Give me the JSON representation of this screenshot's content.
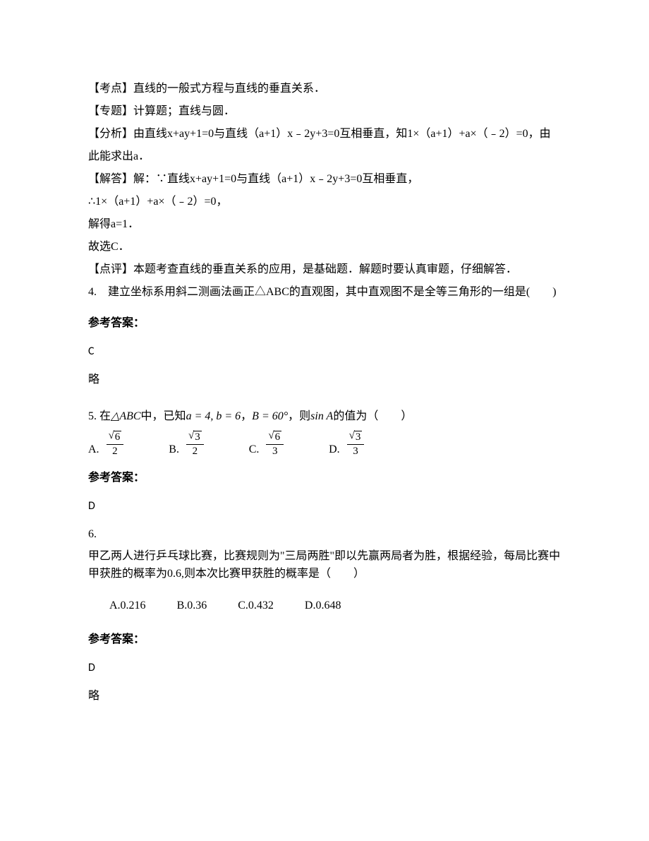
{
  "solution3": {
    "kaodian": "【考点】直线的一般式方程与直线的垂直关系．",
    "zhuanti": "【专题】计算题；直线与圆．",
    "fenxi": "【分析】由直线x+ay+1=0与直线（a+1）x﹣2y+3=0互相垂直，知1×（a+1）+a×（﹣2）=0，由此能求出a．",
    "jieda1": "【解答】解：∵直线x+ay+1=0与直线（a+1）x﹣2y+3=0互相垂直，",
    "jieda2": "∴1×（a+1）+a×（﹣2）=0，",
    "jieda3": "解得a=1．",
    "jieda4": "故选C．",
    "dianping": "【点评】本题考查直线的垂直关系的应用，是基础题．解题时要认真审题，仔细解答．"
  },
  "q4": {
    "text": "4.　建立坐标系用斜二测画法画正△ABC的直观图，其中直观图不是全等三角形的一组是(　　)",
    "answer_label": "参考答案：",
    "answer": "C",
    "brief": "略"
  },
  "q5": {
    "prefix": "5. 在",
    "triangle": "△ABC",
    "mid1": " 中，已知 ",
    "cond": "a = 4, b = 6",
    "comma": "，",
    "angle": "B = 60°",
    "mid2": "，则 ",
    "sinA": "sin A",
    "suffix": " 的值为（　　）",
    "options": {
      "A": {
        "num_r": "6",
        "den": "2"
      },
      "B": {
        "num_r": "3",
        "den": "2"
      },
      "C": {
        "num_r": "6",
        "den": "3"
      },
      "D": {
        "num_r": "3",
        "den": "3"
      }
    },
    "answer_label": "参考答案：",
    "answer": "D"
  },
  "q6": {
    "num": "6.",
    "body": "甲乙两人进行乒乓球比赛，比赛规则为\"三局两胜\"即以先赢两局者为胜，根据经验，每局比赛中甲获胜的概率为0.6,则本次比赛甲获胜的概率是（　　）",
    "opts": {
      "A": "A.0.216",
      "B": "B.0.36",
      "C": "C.0.432",
      "D": "D.0.648"
    },
    "answer_label": "参考答案：",
    "answer": "D",
    "brief": "略"
  }
}
